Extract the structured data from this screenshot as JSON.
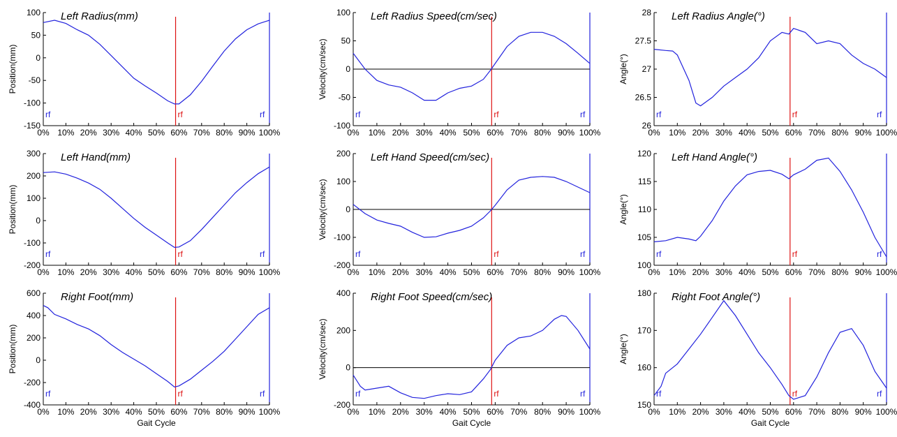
{
  "colors": {
    "curve": "#2222dd",
    "event_marker": "#dd1111",
    "zero_line": "#000000",
    "boundary": "#2222dd"
  },
  "chart_data": [
    {
      "type": "line",
      "title": "Left Radius(mm)",
      "ylabel": "Position(mm)",
      "xlabel": "",
      "ylim": [
        -150,
        100
      ],
      "yticks": [
        -150,
        -100,
        -50,
        0,
        50,
        100
      ],
      "x": [
        0,
        5,
        10,
        15,
        20,
        25,
        30,
        35,
        40,
        45,
        50,
        55,
        58,
        60,
        65,
        70,
        75,
        80,
        85,
        90,
        95,
        100
      ],
      "y": [
        78,
        83,
        76,
        62,
        50,
        30,
        5,
        -20,
        -45,
        -62,
        -78,
        -95,
        -102,
        -102,
        -82,
        -52,
        -18,
        15,
        42,
        62,
        75,
        83
      ],
      "zero_line": false,
      "event_x": 58.5,
      "event_labels": [
        "rf",
        "rf",
        "rf"
      ]
    },
    {
      "type": "line",
      "title": "Left Radius Speed(cm/sec)",
      "ylabel": "Velocity(cm/sec)",
      "xlabel": "",
      "ylim": [
        -100,
        100
      ],
      "yticks": [
        -100,
        -50,
        0,
        50,
        100
      ],
      "x": [
        0,
        5,
        10,
        15,
        20,
        25,
        30,
        35,
        40,
        45,
        50,
        55,
        58,
        60,
        65,
        70,
        75,
        80,
        85,
        90,
        95,
        100
      ],
      "y": [
        28,
        0,
        -20,
        -28,
        -32,
        -42,
        -55,
        -55,
        -42,
        -34,
        -30,
        -18,
        -2,
        10,
        40,
        58,
        65,
        65,
        58,
        45,
        28,
        10
      ],
      "zero_line": true,
      "event_x": 58.5,
      "event_labels": [
        "rf",
        "rf",
        "rf"
      ]
    },
    {
      "type": "line",
      "title": "Left Radius Angle(°)",
      "ylabel": "Angle(°)",
      "xlabel": "",
      "ylim": [
        26,
        28
      ],
      "yticks": [
        26,
        26.5,
        27,
        27.5,
        28
      ],
      "x": [
        0,
        5,
        8,
        10,
        15,
        18,
        20,
        25,
        30,
        35,
        40,
        45,
        50,
        55,
        58,
        60,
        65,
        70,
        75,
        80,
        85,
        90,
        95,
        100
      ],
      "y": [
        27.35,
        27.33,
        27.32,
        27.25,
        26.8,
        26.4,
        26.35,
        26.5,
        26.7,
        26.85,
        27.0,
        27.2,
        27.5,
        27.65,
        27.62,
        27.72,
        27.65,
        27.45,
        27.5,
        27.45,
        27.25,
        27.1,
        27.0,
        26.85
      ],
      "zero_line": false,
      "event_x": 58.5,
      "event_labels": [
        "rf",
        "rf",
        "rf"
      ]
    },
    {
      "type": "line",
      "title": "Left Hand(mm)",
      "ylabel": "Position(mm)",
      "xlabel": "",
      "ylim": [
        -200,
        300
      ],
      "yticks": [
        -200,
        -100,
        0,
        100,
        200,
        300
      ],
      "x": [
        0,
        5,
        10,
        15,
        20,
        25,
        30,
        35,
        40,
        45,
        50,
        55,
        58,
        60,
        65,
        70,
        75,
        80,
        85,
        90,
        95,
        100
      ],
      "y": [
        215,
        218,
        208,
        190,
        168,
        140,
        100,
        55,
        10,
        -30,
        -65,
        -100,
        -120,
        -118,
        -90,
        -40,
        15,
        70,
        125,
        170,
        210,
        240
      ],
      "zero_line": false,
      "event_x": 58.5,
      "event_labels": [
        "rf",
        "rf",
        "rf"
      ]
    },
    {
      "type": "line",
      "title": "Left Hand Speed(cm/sec)",
      "ylabel": "Velocity(cm/sec)",
      "xlabel": "",
      "ylim": [
        -200,
        200
      ],
      "yticks": [
        -200,
        -100,
        0,
        100,
        200
      ],
      "x": [
        0,
        5,
        10,
        15,
        20,
        25,
        30,
        35,
        40,
        45,
        50,
        55,
        58,
        60,
        65,
        70,
        75,
        80,
        85,
        90,
        95,
        100
      ],
      "y": [
        18,
        -15,
        -38,
        -50,
        -60,
        -82,
        -100,
        -98,
        -85,
        -75,
        -60,
        -30,
        -5,
        15,
        70,
        105,
        115,
        118,
        115,
        100,
        80,
        60
      ],
      "zero_line": true,
      "event_x": 58.5,
      "event_labels": [
        "rf",
        "rf",
        "rf"
      ]
    },
    {
      "type": "line",
      "title": "Left Hand Angle(°)",
      "ylabel": "Angle(°)",
      "xlabel": "",
      "ylim": [
        100,
        120
      ],
      "yticks": [
        100,
        105,
        110,
        115,
        120
      ],
      "x": [
        0,
        5,
        10,
        15,
        18,
        20,
        25,
        30,
        35,
        40,
        45,
        50,
        55,
        58,
        60,
        65,
        70,
        75,
        80,
        85,
        90,
        95,
        100
      ],
      "y": [
        104.2,
        104.4,
        105,
        104.7,
        104.4,
        105.2,
        108,
        111.5,
        114.2,
        116.2,
        116.8,
        117,
        116.3,
        115.5,
        116.2,
        117.2,
        118.8,
        119.2,
        116.8,
        113.5,
        109.5,
        105,
        101.5
      ],
      "zero_line": false,
      "event_x": 58.5,
      "event_labels": [
        "rf",
        "rf",
        "rf"
      ]
    },
    {
      "type": "line",
      "title": "Right Foot(mm)",
      "ylabel": "Position(mm)",
      "xlabel": "Gait Cycle",
      "ylim": [
        -400,
        600
      ],
      "yticks": [
        -400,
        -200,
        0,
        200,
        400,
        600
      ],
      "x": [
        0,
        2,
        5,
        10,
        15,
        20,
        25,
        30,
        35,
        40,
        45,
        50,
        55,
        58,
        60,
        65,
        70,
        75,
        80,
        85,
        90,
        95,
        100
      ],
      "y": [
        490,
        470,
        410,
        370,
        320,
        280,
        220,
        140,
        70,
        10,
        -50,
        -120,
        -190,
        -240,
        -230,
        -170,
        -90,
        -10,
        80,
        190,
        300,
        410,
        470
      ],
      "zero_line": false,
      "event_x": 58.5,
      "event_labels": [
        "rf",
        "rf",
        "rf"
      ]
    },
    {
      "type": "line",
      "title": "Right Foot Speed(cm/sec)",
      "ylabel": "Velocity(cm/sec)",
      "xlabel": "Gait Cycle",
      "ylim": [
        -200,
        400
      ],
      "yticks": [
        -200,
        0,
        200,
        400
      ],
      "x": [
        0,
        3,
        5,
        10,
        15,
        20,
        25,
        30,
        35,
        40,
        45,
        50,
        55,
        58,
        60,
        65,
        70,
        75,
        80,
        85,
        88,
        90,
        95,
        100
      ],
      "y": [
        -40,
        -100,
        -120,
        -110,
        -100,
        -135,
        -160,
        -165,
        -150,
        -140,
        -145,
        -130,
        -60,
        -10,
        40,
        120,
        160,
        170,
        200,
        260,
        280,
        275,
        200,
        100
      ],
      "zero_line": true,
      "event_x": 58.5,
      "event_labels": [
        "rf",
        "rf",
        "rf"
      ]
    },
    {
      "type": "line",
      "title": "Right Foot Angle(°)",
      "ylabel": "Angle(°)",
      "xlabel": "Gait Cycle",
      "ylim": [
        150,
        180
      ],
      "yticks": [
        150,
        160,
        170,
        180
      ],
      "x": [
        0,
        3,
        5,
        10,
        15,
        20,
        25,
        30,
        35,
        40,
        45,
        50,
        55,
        58,
        60,
        65,
        70,
        75,
        80,
        85,
        90,
        95,
        100
      ],
      "y": [
        152.5,
        155,
        158.5,
        161,
        165,
        169,
        173.5,
        178,
        174,
        169,
        164,
        160,
        155.5,
        152.5,
        151.5,
        152.5,
        157.5,
        164,
        169.5,
        170.5,
        166,
        159,
        154.5
      ],
      "zero_line": false,
      "event_x": 58.5,
      "event_labels": [
        "rf",
        "rf",
        "rf"
      ]
    }
  ]
}
